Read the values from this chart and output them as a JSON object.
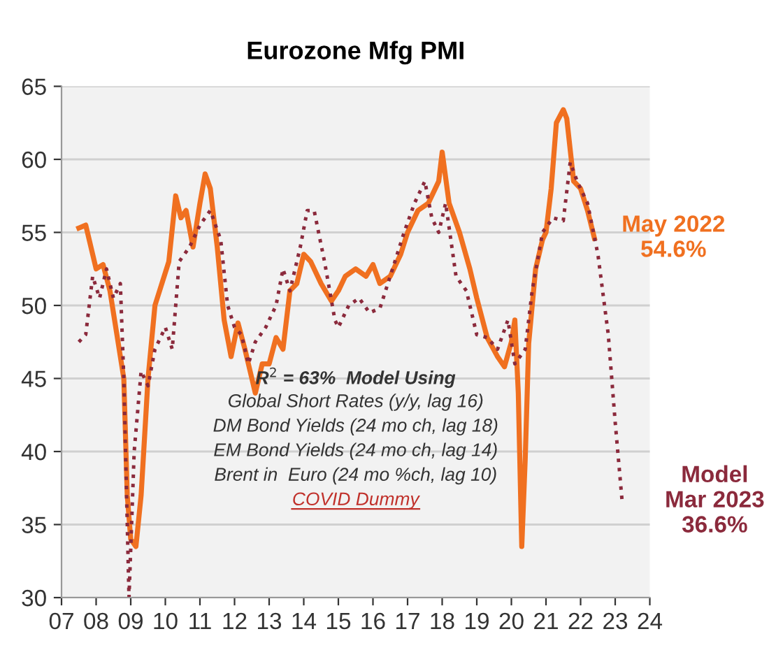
{
  "chart_data": {
    "type": "line",
    "title": "Eurozone Mfg PMI",
    "series": [
      {
        "color": "#f07020",
        "line_style": "solid",
        "x": [
          2007.5,
          2007.7,
          2007.9,
          2008.0,
          2008.2,
          2008.4,
          2008.6,
          2008.8,
          2008.9,
          2009.0,
          2009.15,
          2009.3,
          2009.5,
          2009.7,
          2009.9,
          2010.1,
          2010.3,
          2010.45,
          2010.6,
          2010.8,
          2011.0,
          2011.15,
          2011.3,
          2011.5,
          2011.7,
          2011.9,
          2012.1,
          2012.3,
          2012.5,
          2012.6,
          2012.8,
          2013.0,
          2013.2,
          2013.4,
          2013.6,
          2013.8,
          2014.0,
          2014.2,
          2014.5,
          2014.8,
          2015.0,
          2015.2,
          2015.5,
          2015.8,
          2016.0,
          2016.2,
          2016.5,
          2016.8,
          2017.0,
          2017.3,
          2017.6,
          2017.9,
          2018.0,
          2018.2,
          2018.5,
          2018.8,
          2019.0,
          2019.3,
          2019.6,
          2019.8,
          2020.0,
          2020.1,
          2020.2,
          2020.3,
          2020.4,
          2020.5,
          2020.7,
          2020.9,
          2021.0,
          2021.15,
          2021.3,
          2021.5,
          2021.6,
          2021.8,
          2022.0,
          2022.2,
          2022.4
        ],
        "values": [
          55.3,
          55.5,
          53.5,
          52.5,
          52.8,
          51,
          48,
          45,
          37,
          34,
          33.5,
          37,
          45,
          50,
          51.5,
          53,
          57.5,
          56,
          56.5,
          54,
          57,
          59,
          58,
          54,
          49,
          46.5,
          48.8,
          47,
          45,
          44,
          46,
          46,
          47.8,
          47,
          51,
          51.5,
          53.5,
          53,
          51.5,
          50.3,
          51,
          52,
          52.5,
          52,
          52.8,
          51.5,
          52,
          53.5,
          55,
          56.5,
          57,
          58.5,
          60.5,
          57,
          55,
          52.5,
          50.5,
          47.8,
          46.5,
          45.8,
          47.5,
          49,
          44,
          33.5,
          39.5,
          47.4,
          52.5,
          54.5,
          55,
          58,
          62.5,
          63.4,
          62.8,
          58.5,
          58,
          56.5,
          54.6
        ]
      },
      {
        "color": "#8b2a3c",
        "line_style": "dotted",
        "x": [
          2007.5,
          2007.7,
          2007.9,
          2008.1,
          2008.3,
          2008.5,
          2008.7,
          2008.8,
          2008.95,
          2009.1,
          2009.3,
          2009.5,
          2009.7,
          2010.0,
          2010.2,
          2010.4,
          2010.7,
          2011.0,
          2011.3,
          2011.6,
          2011.8,
          2012.0,
          2012.2,
          2012.4,
          2012.6,
          2012.9,
          2013.2,
          2013.4,
          2013.6,
          2013.9,
          2014.1,
          2014.3,
          2014.6,
          2014.9,
          2015.0,
          2015.3,
          2015.6,
          2015.9,
          2016.2,
          2016.5,
          2016.9,
          2017.2,
          2017.5,
          2017.7,
          2017.9,
          2018.1,
          2018.4,
          2018.7,
          2019.0,
          2019.3,
          2019.6,
          2019.9,
          2020.1,
          2020.4,
          2020.6,
          2020.9,
          2021.2,
          2021.5,
          2021.7,
          2021.9,
          2022.2,
          2022.5,
          2022.8,
          2023.0,
          2023.2
        ],
        "values": [
          47.5,
          48,
          52,
          50.5,
          52.5,
          50.5,
          51.5,
          45,
          30,
          40,
          45.5,
          44.5,
          47,
          48.5,
          47,
          53,
          54,
          55.5,
          56.5,
          54.5,
          50,
          48.5,
          48,
          46,
          47.5,
          48.5,
          50,
          52.5,
          51,
          54,
          56.5,
          56.5,
          53,
          49,
          48.5,
          50,
          50.5,
          49.5,
          49.8,
          52,
          55,
          57,
          58.5,
          56,
          55,
          57,
          52,
          51,
          48,
          47.8,
          47,
          49,
          46,
          47,
          51,
          55,
          56,
          55.8,
          59.8,
          58.5,
          57,
          53.5,
          48,
          42,
          36.6
        ]
      }
    ],
    "xlim": [
      2007,
      2024
    ],
    "xticks": [
      {
        "value": 2007,
        "label": "07"
      },
      {
        "value": 2008,
        "label": "08"
      },
      {
        "value": 2009,
        "label": "09"
      },
      {
        "value": 2010,
        "label": "10"
      },
      {
        "value": 2011,
        "label": "11"
      },
      {
        "value": 2012,
        "label": "12"
      },
      {
        "value": 2013,
        "label": "13"
      },
      {
        "value": 2014,
        "label": "14"
      },
      {
        "value": 2015,
        "label": "15"
      },
      {
        "value": 2016,
        "label": "16"
      },
      {
        "value": 2017,
        "label": "17"
      },
      {
        "value": 2018,
        "label": "18"
      },
      {
        "value": 2019,
        "label": "19"
      },
      {
        "value": 2020,
        "label": "20"
      },
      {
        "value": 2021,
        "label": "21"
      },
      {
        "value": 2022,
        "label": "22"
      },
      {
        "value": 2023,
        "label": "23"
      },
      {
        "value": 2024,
        "label": "24"
      }
    ],
    "ylim": [
      30,
      65
    ],
    "yticks": [
      30,
      35,
      40,
      45,
      50,
      55,
      60,
      65
    ],
    "grid": "y",
    "legend": false,
    "marker": "none",
    "annotations": [
      {
        "text": "May 2022\n54.6%",
        "x": 2022.4,
        "y": 54.6
      },
      {
        "text": "Model\nMar 2023\n36.6%",
        "x": 2023.2,
        "y": 36.6
      },
      "R$^{2}$ = 63%  Model Using",
      "Global Short Rates (y/y, lag 16)",
      "DM Bond Yields (24 mo ch, lag 18)",
      "EM Bond Yields (24 mo ch, lag 14)",
      "Brent in  Euro (24 mo %ch, lag 10)",
      "COVID Dummy"
    ]
  }
}
